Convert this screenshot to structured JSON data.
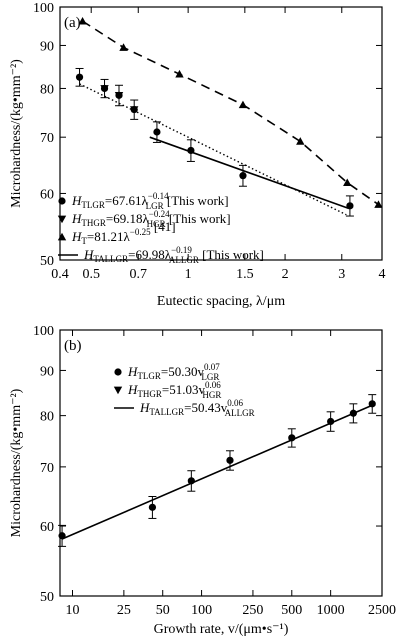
{
  "chart_data": [
    {
      "type": "scatter",
      "panel_label": "(a)",
      "xscale": "log",
      "yscale": "log",
      "xlim": [
        0.4,
        4
      ],
      "ylim": [
        50,
        100
      ],
      "xticks": [
        0.4,
        0.5,
        0.7,
        1,
        1.5,
        2,
        3,
        4
      ],
      "xtick_labels": [
        "0.4",
        "0.5",
        "0.7",
        "1",
        "1.5",
        "2",
        "3",
        "4"
      ],
      "yticks": [
        50,
        60,
        70,
        80,
        90,
        100
      ],
      "ytick_labels": [
        "50",
        "60",
        "70",
        "80",
        "90",
        "100"
      ],
      "xlabel": "Eutectic spacing, λ/μm",
      "ylabel": "Microhardness/(kg•mm⁻²)",
      "series": [
        {
          "name": "H_TLGR=67.61λ_LGR^-0.14 [This work]",
          "label": {
            "main": "H",
            "sub": "TLGR",
            "mid": "=67.61λ",
            "sup": "−0.14",
            "sub2": "LGR",
            "tail": " [This work]"
          },
          "marker": "circle",
          "points": [
            {
              "x": 0.46,
              "y": 82.5,
              "err": 2.0
            },
            {
              "x": 0.55,
              "y": 80.0,
              "err": 2.0
            },
            {
              "x": 0.61,
              "y": 78.5,
              "err": 2.2
            },
            {
              "x": 0.68,
              "y": 75.5,
              "err": 2.0
            },
            {
              "x": 0.8,
              "y": 71.0,
              "err": 2.0
            },
            {
              "x": 1.02,
              "y": 67.5,
              "err": 2.0
            },
            {
              "x": 1.48,
              "y": 63.0,
              "err": 1.8
            },
            {
              "x": 3.18,
              "y": 58.0,
              "err": 1.6
            }
          ]
        },
        {
          "name": "H_THGR=69.18λ_HGR^-0.24 [This work]",
          "label": {
            "main": "H",
            "sub": "THGR",
            "mid": "=69.18λ",
            "sup": "−0.24",
            "sub2": "HGR",
            "tail": " [This work]"
          },
          "marker": "triangle-down",
          "points": [
            {
              "x": 0.55,
              "y": 80.0
            },
            {
              "x": 0.61,
              "y": 78.5
            },
            {
              "x": 0.68,
              "y": 75.5
            }
          ]
        },
        {
          "name": "H_T=81.21λ^-0.25 [41]",
          "label": {
            "main": "H",
            "sub": "T",
            "mid": "=81.21λ",
            "sup": "−0.25",
            "sub2": "",
            "tail": " [41]"
          },
          "marker": "triangle-up",
          "line": "dashed",
          "points": [
            {
              "x": 0.47,
              "y": 96.2
            },
            {
              "x": 0.63,
              "y": 89.5
            },
            {
              "x": 0.94,
              "y": 83.2
            },
            {
              "x": 1.48,
              "y": 76.5
            },
            {
              "x": 2.23,
              "y": 69.2
            },
            {
              "x": 3.12,
              "y": 61.8
            },
            {
              "x": 3.9,
              "y": 58.2
            }
          ]
        },
        {
          "name": "H_TALLGR=69.98λ_ALLGR^-0.19 [This work]",
          "label": {
            "main": "H",
            "sub": "TALLGR",
            "mid": "=69.98λ",
            "sup": "−0.19",
            "sub2": "ALLGR",
            "tail": " [This work]"
          },
          "marker": "line",
          "points": []
        }
      ],
      "fit_lines": [
        {
          "style": "solid",
          "from": [
            0.76,
            70.0
          ],
          "to": [
            3.15,
            57.6
          ]
        },
        {
          "style": "dotted",
          "from": [
            0.46,
            81.0
          ],
          "to": [
            3.1,
            56.6
          ]
        }
      ]
    },
    {
      "type": "scatter",
      "panel_label": "(b)",
      "xscale": "log",
      "yscale": "log",
      "xlim": [
        8,
        2500
      ],
      "ylim": [
        50,
        100
      ],
      "xticks": [
        10,
        25,
        50,
        100,
        250,
        500,
        1000,
        2500
      ],
      "xtick_labels": [
        "10",
        "25",
        "50",
        "100",
        "250",
        "500",
        "1000",
        "2500"
      ],
      "yticks": [
        50,
        60,
        70,
        80,
        90,
        100
      ],
      "ytick_labels": [
        "50",
        "60",
        "70",
        "80",
        "90",
        "100"
      ],
      "xlabel": "Growth rate, v/(μm•s⁻¹)",
      "ylabel": "Microhardness/(kg•mm⁻²)",
      "series": [
        {
          "name": "H_TLGR=50.30v_LGR^0.07",
          "label": {
            "main": "H",
            "sub": "TLGR",
            "mid": "=50.30v",
            "sup": "0.07",
            "sub2": "LGR",
            "tail": ""
          },
          "marker": "circle",
          "points": [
            {
              "x": 8.3,
              "y": 58.5,
              "err": 1.6
            },
            {
              "x": 41.6,
              "y": 63.0,
              "err": 1.8
            },
            {
              "x": 83.3,
              "y": 67.5,
              "err": 1.8
            },
            {
              "x": 166.0,
              "y": 71.2,
              "err": 1.8
            },
            {
              "x": 500.0,
              "y": 75.5,
              "err": 1.8
            },
            {
              "x": 1000.0,
              "y": 78.8,
              "err": 2.0
            },
            {
              "x": 1500.0,
              "y": 80.5,
              "err": 2.0
            },
            {
              "x": 2100.0,
              "y": 82.5,
              "err": 2.0
            }
          ]
        },
        {
          "name": "H_THGR=51.03v_HGR^0.06",
          "label": {
            "main": "H",
            "sub": "THGR",
            "mid": "=51.03v",
            "sup": "0.06",
            "sub2": "HGR",
            "tail": ""
          },
          "marker": "triangle-down",
          "points": []
        },
        {
          "name": "H_TALLGR=50.43v_ALLGR^0.06",
          "label": {
            "main": "H",
            "sub": "TALLGR",
            "mid": "=50.43v",
            "sup": "0.06",
            "sub2": "ALLGR",
            "tail": ""
          },
          "marker": "line",
          "points": []
        }
      ],
      "fit_lines": [
        {
          "style": "solid",
          "from": [
            8.3,
            58.0
          ],
          "to": [
            2100.0,
            82.2
          ]
        }
      ]
    }
  ]
}
